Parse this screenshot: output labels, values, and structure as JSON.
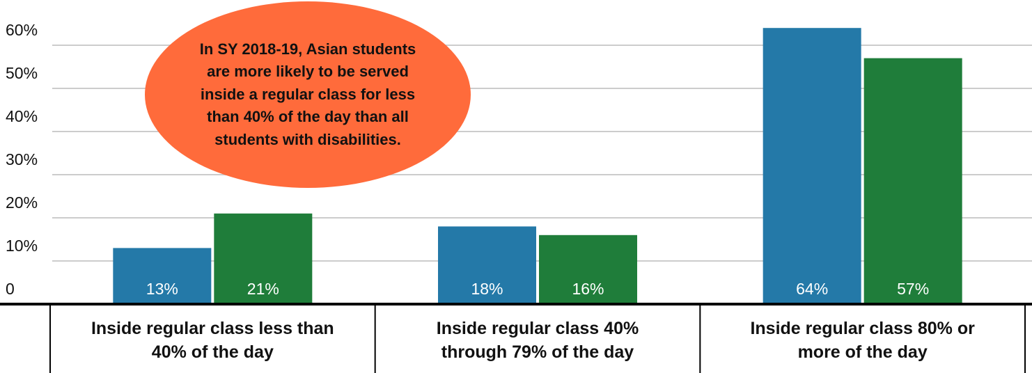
{
  "chart_data": {
    "type": "bar",
    "annotation": "In SY 2018-19, Asian students are more likely to be served inside a regular class for less than 40% of the day than all students with disabilities.",
    "categories": [
      "Inside regular class less than 40% of the day",
      "Inside regular class 40% through 79% of the day",
      "Inside regular class 80% or more of the day"
    ],
    "series": [
      {
        "color": "#2479a8",
        "values": [
          13,
          18,
          64
        ],
        "value_labels": [
          "13%",
          "18%",
          "64%"
        ]
      },
      {
        "color": "#1f7d3a",
        "values": [
          21,
          16,
          57
        ],
        "value_labels": [
          "21%",
          "16%",
          "57%"
        ]
      }
    ],
    "ylim": [
      0,
      65
    ],
    "yticks": [
      0,
      {
        "value": 10,
        "label": "10%"
      },
      {
        "value": 20,
        "label": "20%"
      },
      {
        "value": 30,
        "label": "30%"
      },
      {
        "value": 40,
        "label": "40%"
      },
      {
        "value": 50,
        "label": "50%"
      },
      {
        "value": 60,
        "label": "60%"
      }
    ],
    "grid": true
  }
}
